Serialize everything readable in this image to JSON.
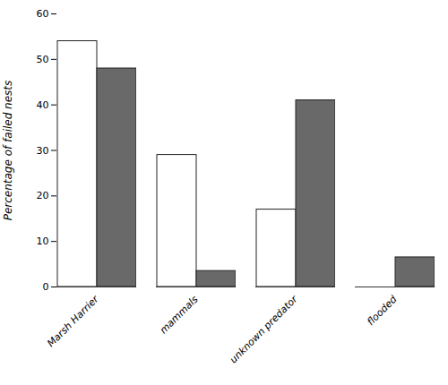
{
  "chart_data": {
    "type": "bar",
    "categories": [
      "Marsh Harrier",
      "mammals",
      "unknown predator",
      "flooded"
    ],
    "series": [
      {
        "color": "#ffffff",
        "values": [
          54,
          29,
          17,
          0
        ]
      },
      {
        "color": "#696969",
        "values": [
          48,
          3.5,
          41,
          6.5
        ]
      }
    ],
    "ylabel": "Percentage of failed nests",
    "ylim": [
      0,
      60
    ],
    "yticks": [
      0,
      10,
      20,
      30,
      40,
      50,
      60
    ],
    "grid": false
  }
}
